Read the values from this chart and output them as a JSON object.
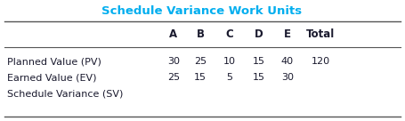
{
  "title": "Schedule Variance Work Units",
  "title_color": "#00AEEF",
  "col_headers": [
    "A",
    "B",
    "C",
    "D",
    "E",
    "Total"
  ],
  "row_labels": [
    "Planned Value (PV)",
    "Earned Value (EV)",
    "Schedule Variance (SV)"
  ],
  "pv_values": [
    "30",
    "25",
    "10",
    "15",
    "40",
    "120"
  ],
  "ev_values": [
    "25",
    "15",
    "5",
    "15",
    "30",
    ""
  ],
  "sv_values": [
    "",
    "",
    "",
    "",
    "",
    ""
  ],
  "header_color": "#1a1a2e",
  "row_label_color": "#1a1a2e",
  "value_color": "#1a1a2e",
  "bg_color": "#ffffff",
  "line_color": "#555555",
  "col_header_fontsize": 8.5,
  "row_label_fontsize": 8.0,
  "value_fontsize": 8.0,
  "title_fontsize": 9.5
}
